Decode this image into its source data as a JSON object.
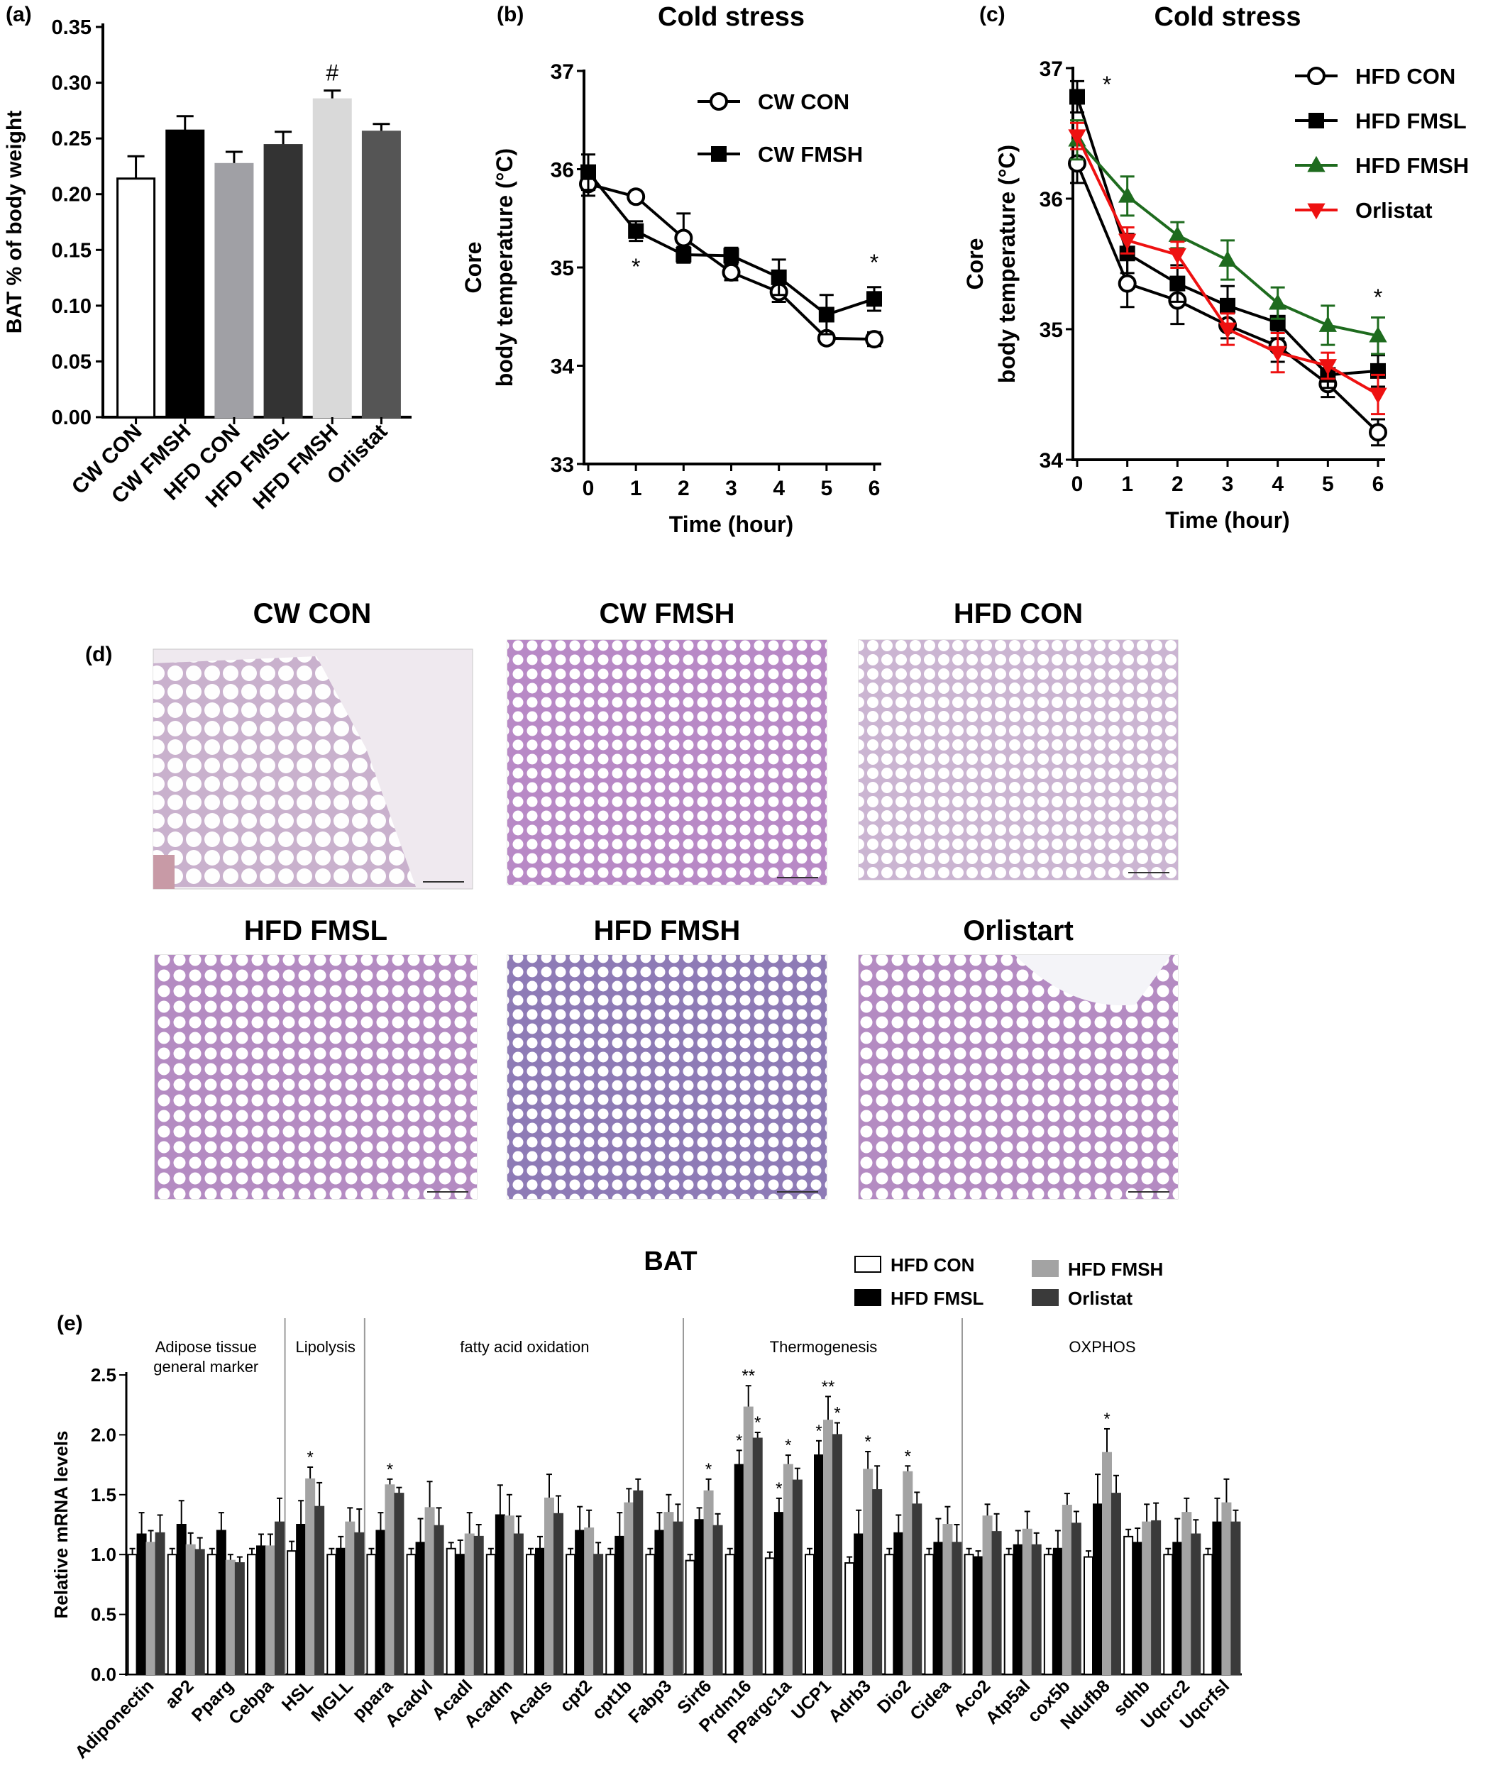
{
  "chart_data": [
    {
      "panel": "(a)",
      "type": "bar",
      "title": "",
      "xlabel": "",
      "ylabel": "BAT % of body weight",
      "ylim": [
        0,
        0.35
      ],
      "yticks": [
        "0.00",
        "0.05",
        "0.10",
        "0.15",
        "0.20",
        "0.25",
        "0.30",
        "0.35"
      ],
      "categories": [
        "CW CON",
        "CW FMSH",
        "HFD CON",
        "HFD FMSL",
        "HFD FMSH",
        "Orlistat"
      ],
      "values": [
        0.214,
        0.257,
        0.227,
        0.244,
        0.285,
        0.256
      ],
      "errors": [
        0.02,
        0.013,
        0.011,
        0.012,
        0.008,
        0.007
      ],
      "colors": [
        "#ffffff",
        "#000000",
        "#a0a0a5",
        "#333333",
        "#d9d9d9",
        "#555555"
      ],
      "annotations": [
        {
          "index": 4,
          "text": "#"
        }
      ],
      "grid": false
    },
    {
      "panel": "(b)",
      "type": "line",
      "title": "Cold stress",
      "xlabel": "Time (hour)",
      "ylabel_line1": "Core",
      "ylabel_line2": "body temperature (°C)",
      "xlim": [
        0,
        6
      ],
      "ylim": [
        33,
        37
      ],
      "xticks": [
        "0",
        "1",
        "2",
        "3",
        "4",
        "5",
        "6"
      ],
      "yticks": [
        "33",
        "34",
        "35",
        "36",
        "37"
      ],
      "x": [
        0,
        1,
        2,
        3,
        4,
        5,
        6
      ],
      "series": [
        {
          "name": "CW CON",
          "marker": "open-circle",
          "color": "#000000",
          "values": [
            35.85,
            35.72,
            35.3,
            34.95,
            34.75,
            34.28,
            34.27
          ],
          "errors": [
            0.12,
            0.05,
            0.25,
            0.08,
            0.1,
            0.05,
            0.07
          ]
        },
        {
          "name": "CW FMSH",
          "marker": "square",
          "color": "#000000",
          "values": [
            35.97,
            35.37,
            35.13,
            35.12,
            34.9,
            34.52,
            34.68
          ],
          "errors": [
            0.18,
            0.1,
            0.08,
            0.08,
            0.18,
            0.2,
            0.12
          ]
        }
      ],
      "annotations": [
        {
          "x": 1,
          "text": "*"
        },
        {
          "x": 6,
          "text": "*"
        }
      ],
      "legend_position": "top-right"
    },
    {
      "panel": "(c)",
      "type": "line",
      "title": "Cold stress",
      "xlabel": "Time (hour)",
      "ylabel_line1": "Core",
      "ylabel_line2": "body temperature (°C)",
      "xlim": [
        0,
        6
      ],
      "ylim": [
        34,
        37
      ],
      "xticks": [
        "0",
        "1",
        "2",
        "3",
        "4",
        "5",
        "6"
      ],
      "yticks": [
        "34",
        "35",
        "36",
        "37"
      ],
      "x": [
        0,
        1,
        2,
        3,
        4,
        5,
        6
      ],
      "series": [
        {
          "name": "HFD CON",
          "marker": "open-circle",
          "color": "#000000",
          "values": [
            36.27,
            35.35,
            35.22,
            35.03,
            34.87,
            34.58,
            34.21
          ],
          "errors": [
            0.15,
            0.18,
            0.18,
            0.1,
            0.12,
            0.1,
            0.1
          ]
        },
        {
          "name": "HFD FMSL",
          "marker": "square",
          "color": "#000000",
          "values": [
            36.78,
            35.58,
            35.35,
            35.18,
            35.05,
            34.65,
            34.68
          ],
          "errors": [
            0.12,
            0.15,
            0.14,
            0.15,
            0.12,
            0.1,
            0.12
          ]
        },
        {
          "name": "HFD FMSH",
          "marker": "triangle-up",
          "color": "#1e6b1e",
          "values": [
            36.45,
            36.02,
            35.72,
            35.53,
            35.2,
            35.03,
            34.95
          ],
          "errors": [
            0.15,
            0.15,
            0.1,
            0.15,
            0.12,
            0.15,
            0.14
          ]
        },
        {
          "name": "Orlistat",
          "marker": "triangle-down",
          "color": "#ee1111",
          "values": [
            36.48,
            35.68,
            35.57,
            35.0,
            34.82,
            34.72,
            34.5
          ],
          "errors": [
            0.1,
            0.1,
            0.1,
            0.12,
            0.15,
            0.1,
            0.15
          ]
        }
      ],
      "annotations": [
        {
          "x": 0,
          "text": "*"
        },
        {
          "x": 6,
          "text": "*"
        }
      ],
      "legend_position": "top-right"
    },
    {
      "panel": "(e)",
      "type": "bar",
      "title": "BAT",
      "xlabel": "",
      "ylabel": "Relative mRNA levels",
      "ylim": [
        0,
        2.5
      ],
      "yticks": [
        "0.0",
        "0.5",
        "1.0",
        "1.5",
        "2.0",
        "2.5"
      ],
      "categories": [
        "Adiponectin",
        "aP2",
        "Pparg",
        "Cebpa",
        "HSL",
        "MGLL",
        "ppara",
        "Acadvl",
        "Acadl",
        "Acadm",
        "Acads",
        "cpt2",
        "cpt1b",
        "Fabp3",
        "Sirt6",
        "Prdm16",
        "PPargc1a",
        "UCP1",
        "Adrb3",
        "Dio2",
        "Cidea",
        "Aco2",
        "Atp5al",
        "cox5b",
        "Ndufb8",
        "sdhb",
        "Uqcrc2",
        "Uqcrfsl"
      ],
      "series": [
        {
          "name": "HFD CON",
          "color": "#ffffff",
          "values": [
            1.0,
            1.0,
            1.0,
            1.0,
            1.03,
            1.0,
            1.0,
            1.0,
            1.05,
            1.0,
            1.0,
            1.0,
            1.0,
            1.0,
            0.95,
            1.0,
            0.97,
            1.0,
            0.93,
            1.0,
            1.0,
            1.0,
            1.0,
            1.0,
            0.98,
            1.15,
            1.0,
            1.0
          ],
          "errors": [
            0.05,
            0.05,
            0.05,
            0.05,
            0.08,
            0.05,
            0.05,
            0.05,
            0.05,
            0.05,
            0.05,
            0.05,
            0.05,
            0.05,
            0.05,
            0.05,
            0.05,
            0.05,
            0.05,
            0.05,
            0.05,
            0.05,
            0.05,
            0.05,
            0.05,
            0.06,
            0.05,
            0.05
          ]
        },
        {
          "name": "HFD FMSL",
          "color": "#000000",
          "values": [
            1.17,
            1.25,
            1.2,
            1.07,
            1.25,
            1.05,
            1.2,
            1.1,
            1.0,
            1.33,
            1.05,
            1.2,
            1.15,
            1.2,
            1.29,
            1.75,
            1.35,
            1.83,
            1.17,
            1.18,
            1.1,
            0.98,
            1.08,
            1.05,
            1.42,
            1.1,
            1.1,
            1.27
          ],
          "errors": [
            0.18,
            0.2,
            0.15,
            0.1,
            0.2,
            0.1,
            0.15,
            0.2,
            0.12,
            0.25,
            0.1,
            0.2,
            0.2,
            0.15,
            0.1,
            0.12,
            0.12,
            0.12,
            0.2,
            0.15,
            0.2,
            0.05,
            0.12,
            0.15,
            0.25,
            0.12,
            0.2,
            0.2
          ]
        },
        {
          "name": "HFD FMSH",
          "color": "#a3a3a3",
          "values": [
            1.1,
            1.08,
            0.95,
            1.07,
            1.63,
            1.27,
            1.58,
            1.39,
            1.17,
            1.32,
            1.47,
            1.22,
            1.43,
            1.35,
            1.53,
            2.23,
            1.75,
            2.12,
            1.71,
            1.69,
            1.25,
            1.32,
            1.21,
            1.41,
            1.85,
            1.27,
            1.35,
            1.43
          ],
          "errors": [
            0.1,
            0.1,
            0.05,
            0.1,
            0.1,
            0.12,
            0.05,
            0.22,
            0.18,
            0.18,
            0.2,
            0.15,
            0.12,
            0.15,
            0.1,
            0.18,
            0.08,
            0.2,
            0.15,
            0.05,
            0.15,
            0.1,
            0.15,
            0.1,
            0.2,
            0.15,
            0.12,
            0.2
          ]
        },
        {
          "name": "Orlistat",
          "color": "#3a3a3a",
          "values": [
            1.18,
            1.04,
            0.93,
            1.27,
            1.4,
            1.18,
            1.51,
            1.24,
            1.15,
            1.17,
            1.34,
            1.0,
            1.53,
            1.27,
            1.24,
            1.97,
            1.62,
            2.0,
            1.54,
            1.42,
            1.1,
            1.19,
            1.08,
            1.26,
            1.51,
            1.28,
            1.17,
            1.27
          ],
          "errors": [
            0.15,
            0.1,
            0.05,
            0.2,
            0.2,
            0.2,
            0.05,
            0.15,
            0.1,
            0.15,
            0.15,
            0.1,
            0.1,
            0.15,
            0.1,
            0.05,
            0.1,
            0.1,
            0.2,
            0.1,
            0.15,
            0.15,
            0.1,
            0.1,
            0.15,
            0.15,
            0.12,
            0.1
          ]
        }
      ],
      "stars": [
        {
          "gene": 4,
          "series": 2,
          "text": "*"
        },
        {
          "gene": 6,
          "series": 2,
          "text": "*"
        },
        {
          "gene": 14,
          "series": 2,
          "text": "*"
        },
        {
          "gene": 15,
          "series": 1,
          "text": "*"
        },
        {
          "gene": 15,
          "series": 2,
          "text": "**"
        },
        {
          "gene": 15,
          "series": 3,
          "text": "*"
        },
        {
          "gene": 16,
          "series": 1,
          "text": "*"
        },
        {
          "gene": 16,
          "series": 2,
          "text": "*"
        },
        {
          "gene": 17,
          "series": 1,
          "text": "*"
        },
        {
          "gene": 17,
          "series": 2,
          "text": "**"
        },
        {
          "gene": 17,
          "series": 3,
          "text": "*"
        },
        {
          "gene": 18,
          "series": 2,
          "text": "*"
        },
        {
          "gene": 19,
          "series": 2,
          "text": "*"
        },
        {
          "gene": 24,
          "series": 2,
          "text": "*"
        }
      ],
      "groups": [
        {
          "label_lines": [
            "Adipose tissue",
            "general marker"
          ],
          "first": 0,
          "last": 3
        },
        {
          "label_lines": [
            "Lipolysis"
          ],
          "first": 4,
          "last": 5
        },
        {
          "label_lines": [
            "fatty acid oxidation"
          ],
          "first": 6,
          "last": 13
        },
        {
          "label_lines": [
            "Thermogenesis"
          ],
          "first": 14,
          "last": 20
        },
        {
          "label_lines": [
            "OXPHOS"
          ],
          "first": 21,
          "last": 27
        }
      ],
      "legend_position": "top-right"
    }
  ],
  "panels": {
    "a_label": "(a)",
    "b_label": "(b)",
    "c_label": "(c)",
    "d_label": "(d)",
    "e_label": "(e)"
  },
  "histology": {
    "images": [
      {
        "title": "CW  CON",
        "tissue": "sparse"
      },
      {
        "title": "CW  FMSH",
        "tissue": "dense"
      },
      {
        "title": "HFD  CON",
        "tissue": "pale"
      },
      {
        "title": "HFD  FMSL",
        "tissue": "medium"
      },
      {
        "title": "HFD  FMSH",
        "tissue": "dense-blue"
      },
      {
        "title": "Orlistart",
        "tissue": "medium"
      }
    ]
  }
}
